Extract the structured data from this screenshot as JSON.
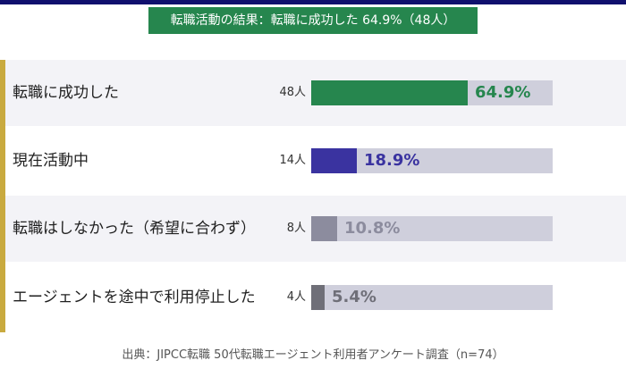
{
  "headline": "転職活動の結果：転職に成功した 64.9%（48人）",
  "source": "出典：JIPCC転職 50代転職エージェント利用者アンケート調査（n=74）",
  "colors": {
    "headline_bg": "#26864e",
    "top_rule": "#10106e",
    "accent": "#c9aa3f",
    "track": "#cfcfdc",
    "success": "#26864e",
    "active": "#3a33a0",
    "gray_mid": "#8c8c9e",
    "gray_dark": "#6f6f78"
  },
  "chart_data": {
    "type": "bar",
    "orientation": "horizontal",
    "xlim": [
      0,
      100
    ],
    "categories": [
      "転職に成功した",
      "現在活動中",
      "転職はしなかった（希望に合わず）",
      "エージェントを途中で利用停止した"
    ],
    "counts": [
      "48人",
      "14人",
      "8人",
      "4人"
    ],
    "values": [
      64.9,
      18.9,
      10.8,
      5.4
    ],
    "value_labels": [
      "64.9%",
      "18.9%",
      "10.8%",
      "5.4%"
    ],
    "bar_colors": [
      "#26864e",
      "#3a33a0",
      "#8c8c9e",
      "#6f6f78"
    ],
    "label_colors": [
      "#26864e",
      "#3a33a0",
      "#8c8c9e",
      "#6f6f78"
    ],
    "label_placement": [
      "inside",
      "outside",
      "outside",
      "outside"
    ]
  }
}
